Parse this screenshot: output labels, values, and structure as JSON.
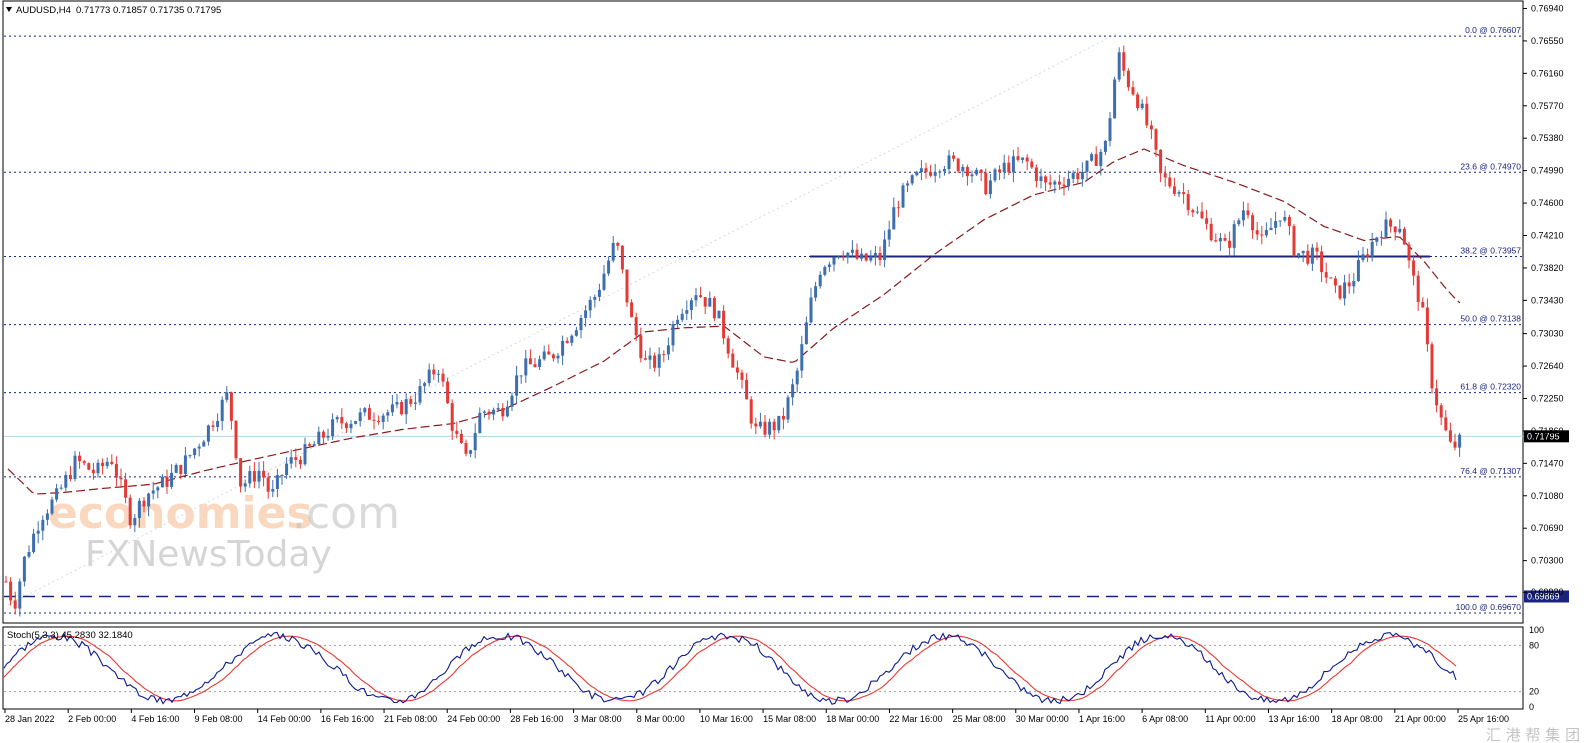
{
  "header": {
    "symbol": "AUDUSD,H4",
    "ohlc": "0.71773 0.71857 0.71735 0.71795"
  },
  "stoch_header": "Stoch(5,3,3) 45.2830 32.1840",
  "watermark": {
    "brand_a": "economies",
    "brand_b": ".com",
    "brand_c": "FXNewsToday",
    "corner": "汇 港 帮 集 团"
  },
  "colors": {
    "bull": "#3d6fb0",
    "bear": "#e53935",
    "fib": "#1a237e",
    "ma": "#8b1a1a",
    "stoch_main": "#0d1b8e",
    "stoch_signal": "#e53935",
    "current_price_line": "#b0d8ec"
  },
  "chart_data": {
    "type": "candlestick",
    "symbol": "AUDUSD",
    "timeframe": "H4",
    "y_ticks": [
      "0.76940",
      "0.76550",
      "0.76160",
      "0.75770",
      "0.75380",
      "0.74990",
      "0.74600",
      "0.74210",
      "0.73820",
      "0.73430",
      "0.73030",
      "0.72640",
      "0.72250",
      "0.71860",
      "0.71470",
      "0.71080",
      "0.70690",
      "0.70300",
      "0.69920"
    ],
    "ylim": [
      0.6955,
      0.7703
    ],
    "x_tick_labels": [
      "28 Jan 2022",
      "2 Feb 00:00",
      "4 Feb 16:00",
      "9 Feb 08:00",
      "14 Feb 00:00",
      "16 Feb 16:00",
      "21 Feb 08:00",
      "24 Feb 00:00",
      "28 Feb 16:00",
      "3 Mar 08:00",
      "8 Mar 00:00",
      "10 Mar 16:00",
      "15 Mar 08:00",
      "18 Mar 00:00",
      "22 Mar 16:00",
      "25 Mar 08:00",
      "30 Mar 00:00",
      "1 Apr 16:00",
      "6 Apr 08:00",
      "11 Apr 00:00",
      "13 Apr 16:00",
      "18 Apr 08:00",
      "21 Apr 00:00",
      "25 Apr 16:00"
    ],
    "fibonacci": [
      {
        "label": "0.0 @ 0.76607",
        "price": 0.76607
      },
      {
        "label": "23.6 @ 0.74970",
        "price": 0.7497
      },
      {
        "label": "38.2 @ 0.73957",
        "price": 0.73957
      },
      {
        "label": "50.0 @ 0.73138",
        "price": 0.73138
      },
      {
        "label": "61.8 @ 0.72320",
        "price": 0.7232
      },
      {
        "label": "76.4 @ 0.71307",
        "price": 0.71307
      },
      {
        "label": "100.0 @ 0.69670",
        "price": 0.6967
      }
    ],
    "current_price": {
      "label": "0.71795",
      "price": 0.71795
    },
    "support_line": {
      "label": "0.69869",
      "price": 0.69869
    },
    "price_path": [
      [
        0,
        0.7005
      ],
      [
        8,
        0.6975
      ],
      [
        18,
        0.703
      ],
      [
        35,
        0.7085
      ],
      [
        50,
        0.7105
      ],
      [
        70,
        0.715
      ],
      [
        90,
        0.7135
      ],
      [
        105,
        0.7155
      ],
      [
        125,
        0.708
      ],
      [
        140,
        0.711
      ],
      [
        160,
        0.7125
      ],
      [
        180,
        0.715
      ],
      [
        200,
        0.7185
      ],
      [
        222,
        0.723
      ],
      [
        235,
        0.712
      ],
      [
        255,
        0.714
      ],
      [
        265,
        0.7105
      ],
      [
        280,
        0.7145
      ],
      [
        300,
        0.716
      ],
      [
        330,
        0.7195
      ],
      [
        360,
        0.7205
      ],
      [
        390,
        0.721
      ],
      [
        412,
        0.723
      ],
      [
        432,
        0.7265
      ],
      [
        448,
        0.7185
      ],
      [
        460,
        0.715
      ],
      [
        475,
        0.721
      ],
      [
        495,
        0.721
      ],
      [
        515,
        0.726
      ],
      [
        545,
        0.7275
      ],
      [
        570,
        0.7315
      ],
      [
        590,
        0.735
      ],
      [
        610,
        0.7415
      ],
      [
        625,
        0.732
      ],
      [
        640,
        0.7265
      ],
      [
        655,
        0.727
      ],
      [
        672,
        0.733
      ],
      [
        690,
        0.7355
      ],
      [
        710,
        0.733
      ],
      [
        730,
        0.726
      ],
      [
        750,
        0.7185
      ],
      [
        775,
        0.7195
      ],
      [
        790,
        0.725
      ],
      [
        805,
        0.734
      ],
      [
        815,
        0.7385
      ],
      [
        835,
        0.7405
      ],
      [
        855,
        0.739
      ],
      [
        875,
        0.7395
      ],
      [
        890,
        0.746
      ],
      [
        910,
        0.749
      ],
      [
        935,
        0.751
      ],
      [
        960,
        0.7505
      ],
      [
        980,
        0.748
      ],
      [
        1000,
        0.7505
      ],
      [
        1020,
        0.751
      ],
      [
        1040,
        0.748
      ],
      [
        1060,
        0.749
      ],
      [
        1080,
        0.75
      ],
      [
        1100,
        0.753
      ],
      [
        1112,
        0.764
      ],
      [
        1120,
        0.761
      ],
      [
        1130,
        0.759
      ],
      [
        1145,
        0.754
      ],
      [
        1155,
        0.749
      ],
      [
        1175,
        0.7475
      ],
      [
        1195,
        0.744
      ],
      [
        1220,
        0.7405
      ],
      [
        1240,
        0.746
      ],
      [
        1255,
        0.741
      ],
      [
        1275,
        0.745
      ],
      [
        1290,
        0.74
      ],
      [
        1310,
        0.7395
      ],
      [
        1330,
        0.735
      ],
      [
        1345,
        0.7365
      ],
      [
        1360,
        0.74
      ],
      [
        1375,
        0.743
      ],
      [
        1395,
        0.7435
      ],
      [
        1405,
        0.7375
      ],
      [
        1415,
        0.734
      ],
      [
        1425,
        0.725
      ],
      [
        1435,
        0.72
      ],
      [
        1445,
        0.7165
      ],
      [
        1460,
        0.7178
      ]
    ],
    "moving_average": [
      [
        0,
        0.7145
      ],
      [
        30,
        0.711
      ],
      [
        60,
        0.7112
      ],
      [
        100,
        0.7117
      ],
      [
        150,
        0.7122
      ],
      [
        200,
        0.7138
      ],
      [
        250,
        0.7152
      ],
      [
        300,
        0.7165
      ],
      [
        350,
        0.7178
      ],
      [
        400,
        0.7188
      ],
      [
        450,
        0.7195
      ],
      [
        500,
        0.7212
      ],
      [
        550,
        0.724
      ],
      [
        600,
        0.727
      ],
      [
        640,
        0.7305
      ],
      [
        680,
        0.731
      ],
      [
        720,
        0.7312
      ],
      [
        760,
        0.7275
      ],
      [
        790,
        0.7268
      ],
      [
        830,
        0.731
      ],
      [
        880,
        0.735
      ],
      [
        930,
        0.7398
      ],
      [
        980,
        0.744
      ],
      [
        1030,
        0.747
      ],
      [
        1080,
        0.7485
      ],
      [
        1110,
        0.751
      ],
      [
        1140,
        0.7525
      ],
      [
        1180,
        0.7505
      ],
      [
        1230,
        0.7485
      ],
      [
        1280,
        0.7462
      ],
      [
        1320,
        0.7432
      ],
      [
        1360,
        0.7415
      ],
      [
        1395,
        0.742
      ],
      [
        1420,
        0.739
      ],
      [
        1440,
        0.736
      ],
      [
        1455,
        0.734
      ]
    ],
    "stochastic": {
      "name": "Stoch(5,3,3)",
      "main": 45.283,
      "signal": 32.184,
      "levels": [
        20,
        80
      ],
      "y_ticks": [
        "100",
        "80",
        "20",
        "0"
      ]
    }
  }
}
